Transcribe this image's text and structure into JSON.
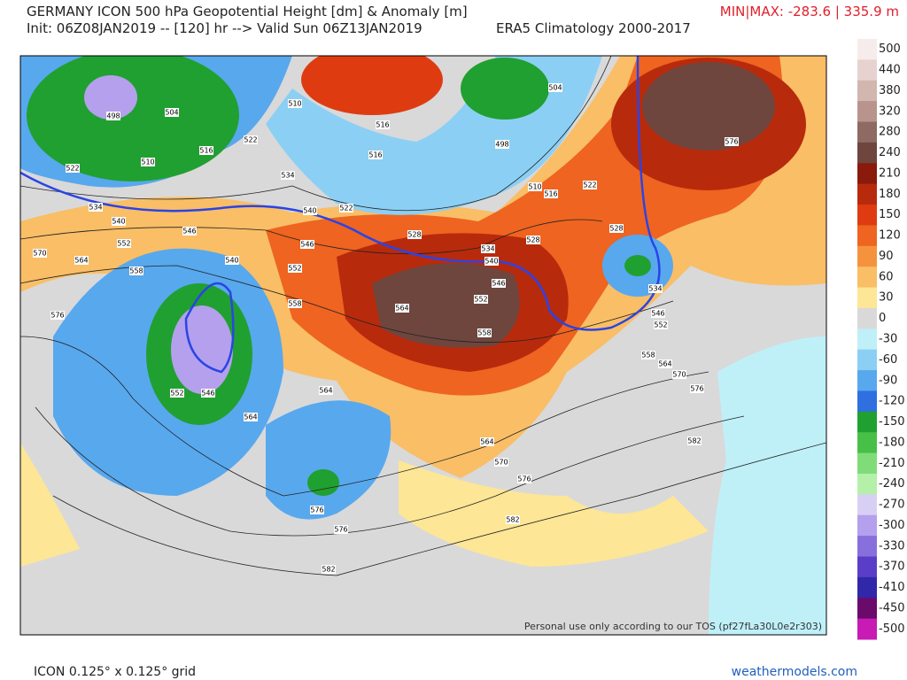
{
  "header": {
    "title": "GERMANY ICON 500 hPa Geopotential Height [dm] & Anomaly [m]",
    "min_max": "MIN|MAX: -283.6 | 335.9 m",
    "init": "Init: 06Z08JAN2019 -- [120] hr --> Valid Sun 06Z13JAN2019",
    "climatology": "ERA5 Climatology 2000-2017"
  },
  "colorbar": {
    "ticks": [
      500,
      440,
      380,
      320,
      280,
      240,
      210,
      180,
      150,
      120,
      90,
      60,
      30,
      0,
      -30,
      -60,
      -90,
      -120,
      -150,
      -180,
      -210,
      -240,
      -270,
      -300,
      -330,
      -370,
      -410,
      -450,
      -500
    ],
    "colors": [
      "#f7ecec",
      "#e6d3d0",
      "#d2b6b0",
      "#b8948c",
      "#8e6a62",
      "#6e463e",
      "#8a1a0c",
      "#b82a0c",
      "#de3c10",
      "#ee6420",
      "#f5923e",
      "#f9be66",
      "#fde696",
      "#d9d9d9",
      "#bff0f8",
      "#8ccff4",
      "#58a8ee",
      "#2f6fe0",
      "#20a030",
      "#48c048",
      "#80dc78",
      "#b4f0a8",
      "#d8d0f4",
      "#b4a0ec",
      "#8870dc",
      "#5a3ec8",
      "#3028a8",
      "#6a0a6a",
      "#c81ab4"
    ]
  },
  "contour_labels": [
    "498",
    "504",
    "510",
    "516",
    "522",
    "510",
    "516",
    "534",
    "540",
    "546",
    "552",
    "558",
    "522",
    "534",
    "540",
    "546",
    "552",
    "558",
    "564",
    "570",
    "576",
    "540",
    "552",
    "546",
    "564",
    "564",
    "516",
    "522",
    "528",
    "534",
    "540",
    "546",
    "552",
    "558",
    "564",
    "528",
    "522",
    "516",
    "510",
    "498",
    "504",
    "576",
    "528",
    "534",
    "546",
    "552",
    "558",
    "564",
    "570",
    "576",
    "582",
    "564",
    "570",
    "576",
    "582",
    "576",
    "576",
    "582"
  ],
  "watermark": "Personal use only according to our TOS (pf27fLa30L0e2r303)",
  "footer": {
    "grid": "ICON 0.125° x 0.125° grid",
    "site": "weathermodels.com"
  }
}
